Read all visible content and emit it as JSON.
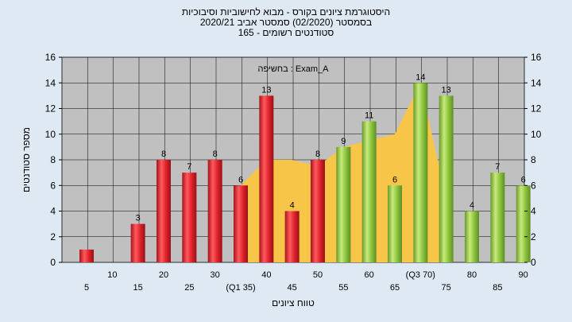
{
  "title_lines": [
    "היסטוגרמת ציונים בקורס - מבוא לחישוביות וסיבוכיות",
    "בסמסטר  (02/2020)  סמסטר אביב  2020/21",
    "סטודנטים רשומים - 165"
  ],
  "chart_data": {
    "type": "bar",
    "annotation": "בחשיפה : Exam_A",
    "xlabel": "טווח ציונים",
    "ylabel": "מספר סטודנטים",
    "ylim": [
      0,
      16
    ],
    "yticks": [
      0,
      2,
      4,
      6,
      8,
      10,
      12,
      14,
      16
    ],
    "grid": true,
    "categories": [
      "5",
      "10",
      "15",
      "20",
      "25",
      "30",
      "(Q1 35)",
      "40",
      "45",
      "50",
      "55",
      "60",
      "65",
      "(Q3 70)",
      "75",
      "80",
      "85",
      "90"
    ],
    "values": [
      1,
      0,
      3,
      8,
      7,
      8,
      6,
      13,
      4,
      8,
      9,
      11,
      6,
      14,
      13,
      4,
      7,
      6
    ],
    "value_labels": [
      "",
      "",
      "3",
      "8",
      "7",
      "8",
      "6",
      "13",
      "4",
      "8",
      "9",
      "11",
      "6",
      "14",
      "13",
      "4",
      "7",
      "6"
    ],
    "bar_colors": [
      "red",
      "red",
      "red",
      "red",
      "red",
      "red",
      "red",
      "red",
      "red",
      "red",
      "green",
      "green",
      "green",
      "green",
      "green",
      "green",
      "green",
      "green"
    ],
    "colors": {
      "red": "#e0242c",
      "green": "#8cc63e",
      "area": "#f7c548",
      "plot_bg": "#c0c0c0",
      "page_bg": "#dfe9f4"
    },
    "area_series": {
      "x": [
        "(Q1 35)",
        "40",
        "45",
        "50",
        "55",
        "60",
        "65",
        "(Q3 70)",
        "75"
      ],
      "values": [
        6,
        8,
        8,
        7.5,
        9,
        9.5,
        10,
        14,
        5
      ]
    }
  }
}
